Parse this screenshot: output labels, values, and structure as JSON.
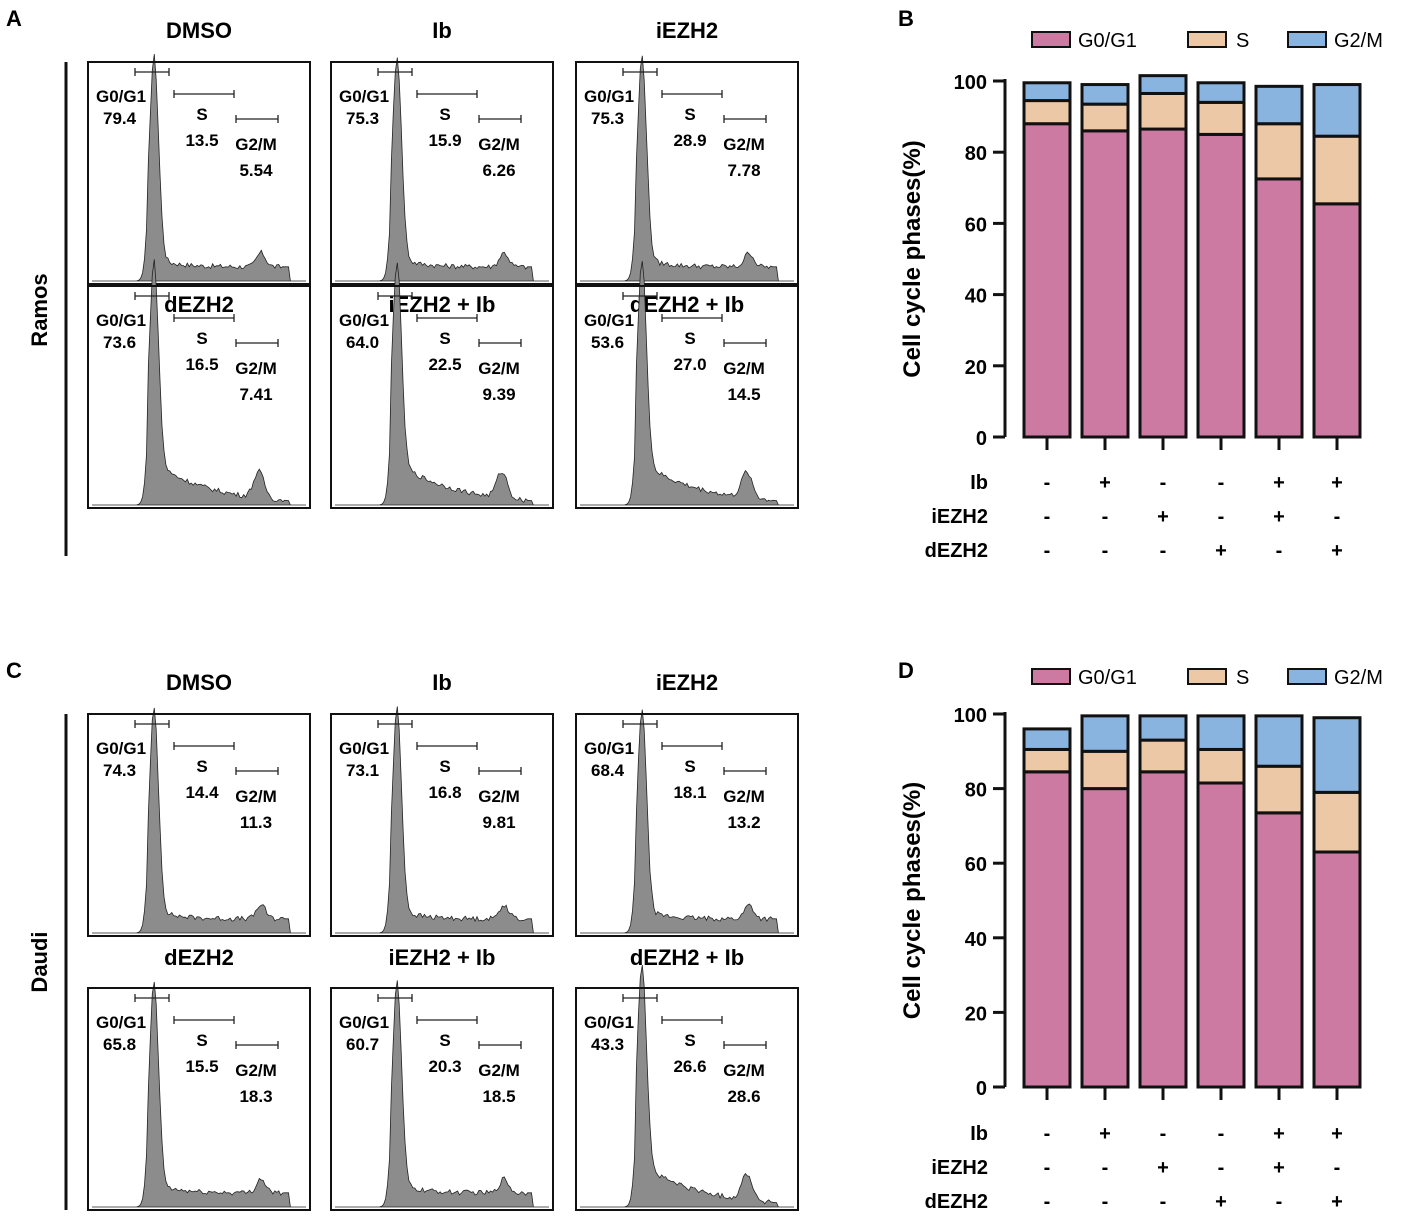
{
  "panel_labels": {
    "A": "A",
    "B": "B",
    "C": "C",
    "D": "D"
  },
  "histograms": [
    {
      "panel": "A",
      "cell_line": "Ramos",
      "plots": [
        {
          "title": "DMSO",
          "g0g1_label": "G0/G1",
          "g0g1": "79.4",
          "s_label": "S",
          "s": "13.5",
          "g2m_label": "G2/M",
          "g2m": "5.54",
          "shape": "compact"
        },
        {
          "title": "Ib",
          "g0g1_label": "G0/G1",
          "g0g1": "75.3",
          "s_label": "S",
          "s": "15.9",
          "g2m_label": "G2/M",
          "g2m": "6.26",
          "shape": "compact"
        },
        {
          "title": "iEZH2",
          "g0g1_label": "G0/G1",
          "g0g1": "75.3",
          "s_label": "S",
          "s": "28.9",
          "g2m_label": "G2/M",
          "g2m": "7.78",
          "shape": "compact"
        },
        {
          "title": "dEZH2",
          "g0g1_label": "G0/G1",
          "g0g1": "73.6",
          "s_label": "S",
          "s": "16.5",
          "g2m_label": "G2/M",
          "g2m": "7.41",
          "shape": "broad"
        },
        {
          "title": "iEZH2 + Ib",
          "g0g1_label": "G0/G1",
          "g0g1": "64.0",
          "s_label": "S",
          "s": "22.5",
          "g2m_label": "G2/M",
          "g2m": "9.39",
          "shape": "broad"
        },
        {
          "title": "dEZH2 + Ib",
          "g0g1_label": "G0/G1",
          "g0g1": "53.6",
          "s_label": "S",
          "s": "27.0",
          "g2m_label": "G2/M",
          "g2m": "14.5",
          "shape": "broad"
        }
      ]
    },
    {
      "panel": "C",
      "cell_line": "Daudi",
      "plots": [
        {
          "title": "DMSO",
          "g0g1_label": "G0/G1",
          "g0g1": "74.3",
          "s_label": "S",
          "s": "14.4",
          "g2m_label": "G2/M",
          "g2m": "11.3",
          "shape": "compact"
        },
        {
          "title": "Ib",
          "g0g1_label": "G0/G1",
          "g0g1": "73.1",
          "s_label": "S",
          "s": "16.8",
          "g2m_label": "G2/M",
          "g2m": "9.81",
          "shape": "compact"
        },
        {
          "title": "iEZH2",
          "g0g1_label": "G0/G1",
          "g0g1": "68.4",
          "s_label": "S",
          "s": "18.1",
          "g2m_label": "G2/M",
          "g2m": "13.2",
          "shape": "compact"
        },
        {
          "title": "dEZH2",
          "g0g1_label": "G0/G1",
          "g0g1": "65.8",
          "s_label": "S",
          "s": "15.5",
          "g2m_label": "G2/M",
          "g2m": "18.3",
          "shape": "compact"
        },
        {
          "title": "iEZH2 + Ib",
          "g0g1_label": "G0/G1",
          "g0g1": "60.7",
          "s_label": "S",
          "s": "20.3",
          "g2m_label": "G2/M",
          "g2m": "18.5",
          "shape": "compact"
        },
        {
          "title": "dEZH2 + Ib",
          "g0g1_label": "G0/G1",
          "g0g1": "43.3",
          "s_label": "S",
          "s": "26.6",
          "g2m_label": "G2/M",
          "g2m": "28.6",
          "shape": "broad"
        }
      ]
    }
  ],
  "chart_data": [
    {
      "panel": "B",
      "type": "bar",
      "stacked": true,
      "ylabel": "Cell cycle phases(%)",
      "ylim": [
        0,
        100
      ],
      "yticks": [
        0,
        20,
        40,
        60,
        80,
        100
      ],
      "series": [
        {
          "name": "G0/G1",
          "values": [
            88,
            86,
            86.5,
            85,
            72.5,
            65.5
          ]
        },
        {
          "name": "S",
          "values": [
            6.5,
            7.5,
            10,
            9,
            15.5,
            19
          ]
        },
        {
          "name": "G2/M",
          "values": [
            5,
            5.5,
            5,
            5.5,
            10.5,
            14.5
          ]
        }
      ],
      "conditions": [
        {
          "label": "Ib",
          "signs": [
            "-",
            "+",
            "-",
            "-",
            "+",
            "+"
          ]
        },
        {
          "label": "iEZH2",
          "signs": [
            "-",
            "-",
            "+",
            "-",
            "+",
            "-"
          ]
        },
        {
          "label": "dEZH2",
          "signs": [
            "-",
            "-",
            "-",
            "+",
            "-",
            "+"
          ]
        }
      ]
    },
    {
      "panel": "D",
      "type": "bar",
      "stacked": true,
      "ylabel": "Cell cycle phases(%)",
      "ylim": [
        0,
        100
      ],
      "yticks": [
        0,
        20,
        40,
        60,
        80,
        100
      ],
      "series": [
        {
          "name": "G0/G1",
          "values": [
            84.5,
            80,
            84.5,
            81.5,
            73.5,
            63
          ]
        },
        {
          "name": "S",
          "values": [
            6,
            10,
            8.5,
            9,
            12.5,
            16
          ]
        },
        {
          "name": "G2/M",
          "values": [
            5.5,
            9.5,
            6.5,
            9,
            13.5,
            20
          ]
        }
      ],
      "conditions": [
        {
          "label": "Ib",
          "signs": [
            "-",
            "+",
            "-",
            "-",
            "+",
            "+"
          ]
        },
        {
          "label": "iEZH2",
          "signs": [
            "-",
            "-",
            "+",
            "-",
            "+",
            "-"
          ]
        },
        {
          "label": "dEZH2",
          "signs": [
            "-",
            "-",
            "-",
            "+",
            "-",
            "+"
          ]
        }
      ]
    }
  ],
  "colors": {
    "g0g1": "#cc7aa2",
    "s": "#ecc8a6",
    "g2m": "#8ab4e0",
    "hist_fill": "#8c8c8c"
  }
}
